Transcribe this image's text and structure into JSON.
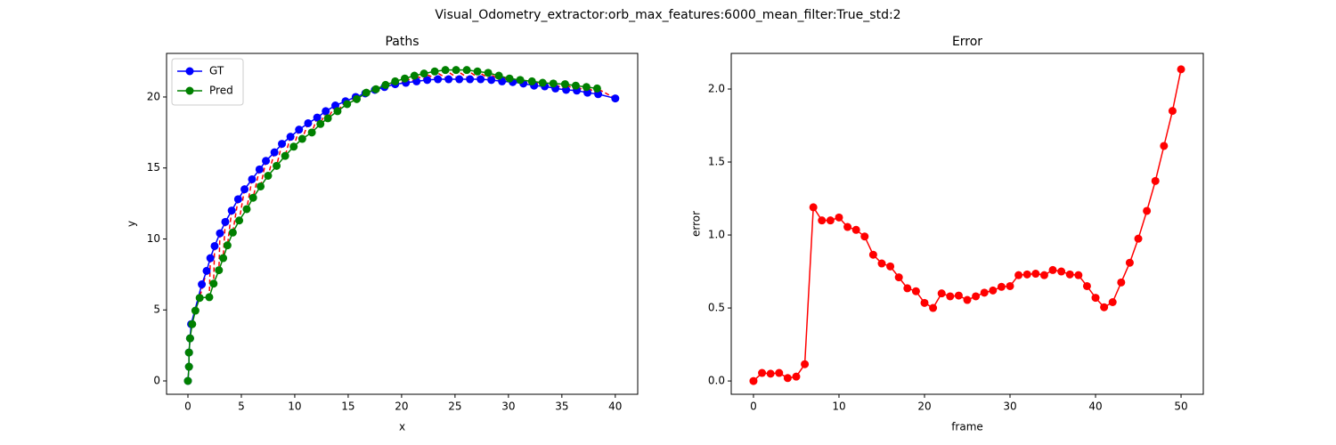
{
  "title": "Visual_Odometry_extractor:orb_max_features:6000_mean_filter:True_std:2",
  "chart_data": [
    {
      "type": "line",
      "title": "Paths",
      "x_label": "x",
      "y_label": "y",
      "legend": "upper left",
      "xlim": [
        -2.0,
        42.1
      ],
      "ylim": [
        -0.94,
        23.07
      ],
      "xticks": [
        0,
        5,
        10,
        15,
        20,
        25,
        30,
        35,
        40
      ],
      "yticks": [
        0,
        5,
        10,
        15,
        20
      ],
      "connect_color": "red",
      "series": [
        {
          "name": "GT",
          "color": "blue",
          "x": [
            0,
            0.1,
            0.1,
            0.2,
            0.3,
            1.3,
            1.75,
            2.1,
            2.5,
            3.0,
            3.5,
            4.1,
            4.7,
            5.3,
            6.0,
            6.7,
            7.3,
            8.1,
            8.8,
            9.6,
            10.4,
            11.25,
            12.1,
            12.9,
            13.8,
            14.75,
            15.7,
            16.6,
            17.5,
            18.4,
            19.4,
            20.4,
            21.4,
            22.4,
            23.4,
            24.4,
            25.4,
            26.4,
            27.4,
            28.4,
            29.4,
            30.4,
            31.4,
            32.4,
            33.4,
            34.4,
            35.4,
            36.4,
            37.4,
            38.4,
            40
          ],
          "values": [
            0,
            1,
            2,
            3,
            4,
            6.8,
            7.75,
            8.65,
            9.5,
            10.4,
            11.2,
            12.0,
            12.8,
            13.5,
            14.2,
            14.9,
            15.5,
            16.1,
            16.7,
            17.2,
            17.7,
            18.15,
            18.55,
            19.0,
            19.4,
            19.7,
            20.0,
            20.25,
            20.5,
            20.7,
            20.9,
            21.0,
            21.1,
            21.2,
            21.25,
            21.25,
            21.25,
            21.25,
            21.25,
            21.2,
            21.1,
            21.05,
            20.95,
            20.8,
            20.75,
            20.6,
            20.5,
            20.45,
            20.3,
            20.2,
            19.9
          ]
        },
        {
          "name": "Pred",
          "color": "green",
          "x": [
            0,
            0.1,
            0.1,
            0.2,
            0.4,
            0.7,
            1.1,
            2.0,
            2.4,
            2.9,
            3.3,
            3.7,
            4.2,
            4.8,
            5.5,
            6.1,
            6.8,
            7.5,
            8.3,
            9.1,
            9.9,
            10.7,
            11.6,
            12.4,
            13.1,
            14.0,
            14.9,
            15.8,
            16.7,
            17.6,
            18.5,
            19.4,
            20.3,
            21.2,
            22.1,
            23.1,
            24.1,
            25.1,
            26.1,
            27.1,
            28.1,
            29.1,
            30.1,
            31.1,
            32.2,
            33.2,
            34.2,
            35.3,
            36.3,
            37.3,
            38.3
          ],
          "values": [
            0,
            1,
            2,
            3,
            4,
            4.95,
            5.85,
            5.9,
            6.85,
            7.8,
            8.65,
            9.55,
            10.45,
            11.3,
            12.1,
            12.9,
            13.7,
            14.45,
            15.15,
            15.85,
            16.5,
            17.05,
            17.5,
            18.1,
            18.5,
            19.0,
            19.5,
            19.85,
            20.3,
            20.55,
            20.85,
            21.1,
            21.3,
            21.5,
            21.65,
            21.8,
            21.9,
            21.9,
            21.9,
            21.8,
            21.7,
            21.5,
            21.3,
            21.2,
            21.1,
            21.0,
            20.95,
            20.9,
            20.8,
            20.7,
            20.6
          ]
        }
      ]
    },
    {
      "type": "line",
      "title": "Error",
      "x_label": "frame",
      "y_label": "error",
      "xlim": [
        -2.6,
        52.6
      ],
      "ylim": [
        -0.091,
        2.244
      ],
      "xticks": [
        0,
        10,
        20,
        30,
        40,
        50
      ],
      "yticks": [
        {
          "value": 0,
          "label": "0.0"
        },
        0.5,
        {
          "value": 1,
          "label": "1.0"
        },
        1.5,
        {
          "value": 2,
          "label": "2.0"
        }
      ],
      "x": [
        0,
        1,
        2,
        3,
        4,
        5,
        6,
        7,
        8,
        9,
        10,
        11,
        12,
        13,
        14,
        15,
        16,
        17,
        18,
        19,
        20,
        21,
        22,
        23,
        24,
        25,
        26,
        27,
        28,
        29,
        30,
        31,
        32,
        33,
        34,
        35,
        36,
        37,
        38,
        39,
        40,
        41,
        42,
        43,
        44,
        45,
        46,
        47,
        48,
        49,
        50
      ],
      "series": [
        {
          "color": "red",
          "values": [
            0.0,
            0.055,
            0.05,
            0.055,
            0.02,
            0.03,
            0.115,
            1.19,
            1.1,
            1.1,
            1.12,
            1.055,
            1.035,
            0.99,
            0.865,
            0.805,
            0.785,
            0.71,
            0.635,
            0.615,
            0.535,
            0.5,
            0.6,
            0.58,
            0.585,
            0.555,
            0.58,
            0.605,
            0.62,
            0.645,
            0.65,
            0.725,
            0.73,
            0.735,
            0.725,
            0.76,
            0.75,
            0.73,
            0.725,
            0.65,
            0.57,
            0.505,
            0.54,
            0.675,
            0.81,
            0.975,
            1.165,
            1.37,
            1.61,
            1.85,
            2.135
          ]
        }
      ]
    }
  ]
}
